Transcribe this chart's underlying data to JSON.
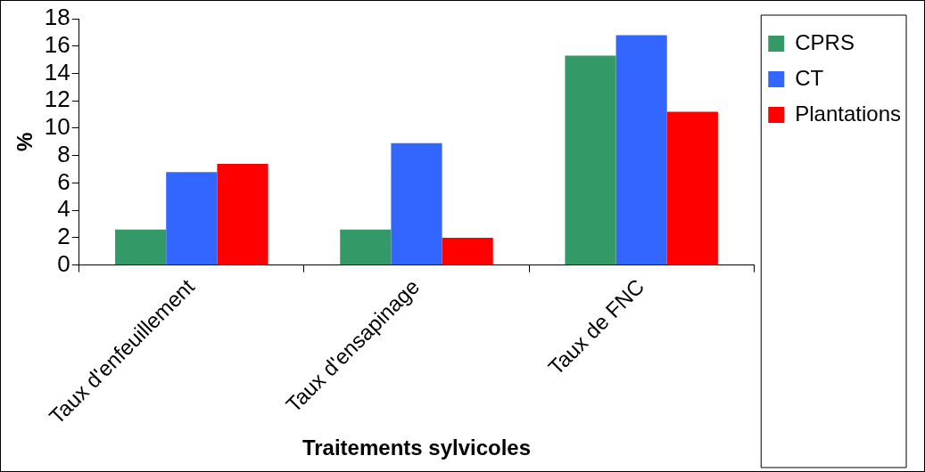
{
  "chart_data": {
    "type": "bar",
    "xlabel": "Traitements sylvicoles",
    "ylabel": "%",
    "categories": [
      "Taux d'enfeuillement",
      "Taux d'ensapinage",
      "Taux de FNC"
    ],
    "series": [
      {
        "name": "CPRS",
        "color": "#339966",
        "values": [
          2.6,
          2.6,
          15.3
        ]
      },
      {
        "name": "CT",
        "color": "#3366ff",
        "values": [
          6.8,
          8.9,
          16.8
        ]
      },
      {
        "name": "Plantations",
        "color": "#ff0000",
        "values": [
          7.4,
          2.0,
          11.2
        ]
      }
    ],
    "ylim": [
      0,
      18
    ],
    "yticks": [
      0,
      2,
      4,
      6,
      8,
      10,
      12,
      14,
      16,
      18
    ],
    "grid": false,
    "legend": "top right"
  }
}
